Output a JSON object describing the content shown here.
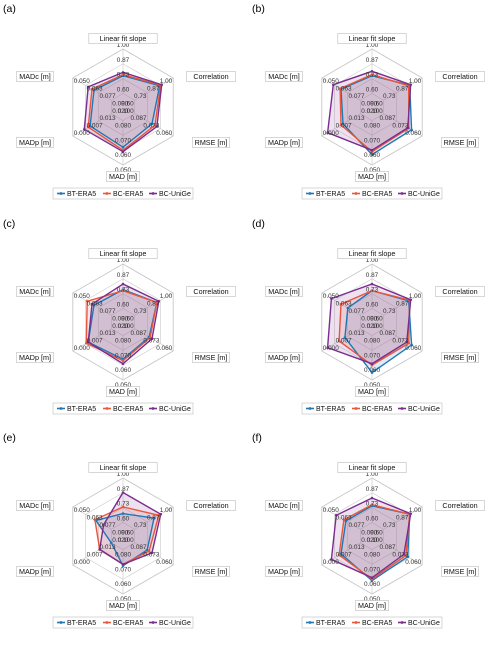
{
  "figure": {
    "series_colors": [
      "#1f77b4",
      "#e8563c",
      "#7b2d8e"
    ],
    "fill_colors": [
      "#4a8fcc",
      "#e87a6a",
      "#9a5aa8"
    ]
  },
  "chart_data": [
    {
      "type": "radar",
      "panel_label": "(a)",
      "axes": [
        "Linear fit slope",
        "Correlation",
        "RMSE [m]",
        "MAD [m]",
        "MADp [m]",
        "MADc [m]"
      ],
      "axis_ticks": [
        [
          "0.60",
          "0.73",
          "0.87",
          "1.00"
        ],
        [
          "0.60",
          "0.73",
          "0.87",
          "1.00"
        ],
        [
          "0.100",
          "0.087",
          "0.073",
          "0.060"
        ],
        [
          "0.080",
          "0.070",
          "0.060",
          "0.050"
        ],
        [
          "0.020",
          "0.013",
          "0.007",
          "0.000"
        ],
        [
          "0.090",
          "0.077",
          "0.063",
          "0.050"
        ]
      ],
      "legend": [
        "BT-ERA5",
        "BC-ERA5",
        "BC-UniGe"
      ],
      "series": [
        {
          "name": "BT-ERA5",
          "values": [
            0.76,
            0.86,
            0.082,
            0.062,
            0.009,
            0.072
          ]
        },
        {
          "name": "BC-ERA5",
          "values": [
            0.77,
            0.87,
            0.079,
            0.06,
            0.008,
            0.07
          ]
        },
        {
          "name": "BC-UniGe",
          "values": [
            0.79,
            0.88,
            0.077,
            0.059,
            0.006,
            0.066
          ]
        }
      ]
    },
    {
      "type": "radar",
      "panel_label": "(b)",
      "axes": [
        "Linear fit slope",
        "Correlation",
        "RMSE [m]",
        "MAD [m]",
        "MADp [m]",
        "MADc [m]"
      ],
      "axis_ticks": [
        [
          "0.60",
          "0.73",
          "0.87",
          "1.00"
        ],
        [
          "0.60",
          "0.73",
          "0.87",
          "1.00"
        ],
        [
          "0.100",
          "0.087",
          "0.073",
          "0.060"
        ],
        [
          "0.080",
          "0.070",
          "0.060",
          "0.050"
        ],
        [
          "0.020",
          "0.013",
          "0.007",
          "0.000"
        ],
        [
          "0.090",
          "0.077",
          "0.063",
          "0.050"
        ]
      ],
      "legend": [
        "BT-ERA5",
        "BC-ERA5",
        "BC-UniGe"
      ],
      "series": [
        {
          "name": "BT-ERA5",
          "values": [
            0.76,
            0.87,
            0.071,
            0.057,
            0.011,
            0.07
          ]
        },
        {
          "name": "BC-ERA5",
          "values": [
            0.77,
            0.86,
            0.074,
            0.059,
            0.01,
            0.069
          ]
        },
        {
          "name": "BC-UniGe",
          "values": [
            0.8,
            0.88,
            0.075,
            0.06,
            0.003,
            0.062
          ]
        }
      ]
    },
    {
      "type": "radar",
      "panel_label": "(c)",
      "axes": [
        "Linear fit slope",
        "Correlation",
        "RMSE [m]",
        "MAD [m]",
        "MADp [m]",
        "MADc [m]"
      ],
      "axis_ticks": [
        [
          "0.60",
          "0.73",
          "0.87",
          "1.00"
        ],
        [
          "0.60",
          "0.73",
          "0.87",
          "1.00"
        ],
        [
          "0.100",
          "0.087",
          "0.073",
          "0.060"
        ],
        [
          "0.080",
          "0.070",
          "0.060",
          "0.050"
        ],
        [
          "0.020",
          "0.013",
          "0.007",
          "0.000"
        ],
        [
          "0.090",
          "0.077",
          "0.063",
          "0.050"
        ]
      ],
      "legend": [
        "BT-ERA5",
        "BC-ERA5",
        "BC-UniGe"
      ],
      "series": [
        {
          "name": "BT-ERA5",
          "values": [
            0.77,
            0.83,
            0.085,
            0.064,
            0.008,
            0.072
          ]
        },
        {
          "name": "BC-ERA5",
          "values": [
            0.76,
            0.83,
            0.084,
            0.063,
            0.007,
            0.065
          ]
        },
        {
          "name": "BC-UniGe",
          "values": [
            0.82,
            0.85,
            0.082,
            0.061,
            0.008,
            0.07
          ]
        }
      ]
    },
    {
      "type": "radar",
      "panel_label": "(d)",
      "axes": [
        "Linear fit slope",
        "Correlation",
        "RMSE [m]",
        "MAD [m]",
        "MADp [m]",
        "MADc [m]"
      ],
      "axis_ticks": [
        [
          "0.60",
          "0.73",
          "0.87",
          "1.00"
        ],
        [
          "0.60",
          "0.73",
          "0.87",
          "1.00"
        ],
        [
          "0.100",
          "0.087",
          "0.073",
          "0.060"
        ],
        [
          "0.080",
          "0.070",
          "0.060",
          "0.050"
        ],
        [
          "0.020",
          "0.013",
          "0.007",
          "0.000"
        ],
        [
          "0.090",
          "0.077",
          "0.063",
          "0.050"
        ]
      ],
      "legend": [
        "BT-ERA5",
        "BC-ERA5",
        "BC-UniGe"
      ],
      "series": [
        {
          "name": "BT-ERA5",
          "values": [
            0.76,
            0.86,
            0.071,
            0.055,
            0.012,
            0.077
          ]
        },
        {
          "name": "BC-ERA5",
          "values": [
            0.76,
            0.87,
            0.074,
            0.06,
            0.009,
            0.07
          ]
        },
        {
          "name": "BC-UniGe",
          "values": [
            0.82,
            0.88,
            0.076,
            0.061,
            0.003,
            0.06
          ]
        }
      ]
    },
    {
      "type": "radar",
      "panel_label": "(e)",
      "axes": [
        "Linear fit slope",
        "Correlation",
        "RMSE [m]",
        "MAD [m]",
        "MADp [m]",
        "MADc [m]"
      ],
      "axis_ticks": [
        [
          "0.60",
          "0.73",
          "0.87",
          "1.00"
        ],
        [
          "0.60",
          "0.73",
          "0.87",
          "1.00"
        ],
        [
          "0.100",
          "0.087",
          "0.073",
          "0.060"
        ],
        [
          "0.080",
          "0.070",
          "0.060",
          "0.050"
        ],
        [
          "0.020",
          "0.013",
          "0.007",
          "0.000"
        ],
        [
          "0.090",
          "0.077",
          "0.063",
          "0.050"
        ]
      ],
      "legend": [
        "BT-ERA5",
        "BC-ERA5",
        "BC-UniGe"
      ],
      "series": [
        {
          "name": "BT-ERA5",
          "values": [
            0.68,
            0.8,
            0.087,
            0.069,
            0.02,
            0.074
          ]
        },
        {
          "name": "BC-ERA5",
          "values": [
            0.74,
            0.85,
            0.085,
            0.07,
            0.014,
            0.073
          ]
        },
        {
          "name": "BC-UniGe",
          "values": [
            0.87,
            0.87,
            0.082,
            0.07,
            0.014,
            0.082
          ]
        }
      ]
    },
    {
      "type": "radar",
      "panel_label": "(f)",
      "axes": [
        "Linear fit slope",
        "Correlation",
        "RMSE [m]",
        "MAD [m]",
        "MADp [m]",
        "MADc [m]"
      ],
      "axis_ticks": [
        [
          "0.60",
          "0.73",
          "0.87",
          "1.00"
        ],
        [
          "0.60",
          "0.73",
          "0.87",
          "1.00"
        ],
        [
          "0.100",
          "0.087",
          "0.073",
          "0.060"
        ],
        [
          "0.080",
          "0.070",
          "0.060",
          "0.050"
        ],
        [
          "0.020",
          "0.013",
          "0.007",
          "0.000"
        ],
        [
          "0.090",
          "0.077",
          "0.063",
          "0.050"
        ]
      ],
      "legend": [
        "BT-ERA5",
        "BC-ERA5",
        "BC-UniGe"
      ],
      "series": [
        {
          "name": "BT-ERA5",
          "values": [
            0.75,
            0.87,
            0.075,
            0.059,
            0.01,
            0.075
          ]
        },
        {
          "name": "BC-ERA5",
          "values": [
            0.76,
            0.87,
            0.077,
            0.06,
            0.009,
            0.073
          ]
        },
        {
          "name": "BC-UniGe",
          "values": [
            0.82,
            0.88,
            0.079,
            0.061,
            0.005,
            0.065
          ]
        }
      ]
    }
  ]
}
